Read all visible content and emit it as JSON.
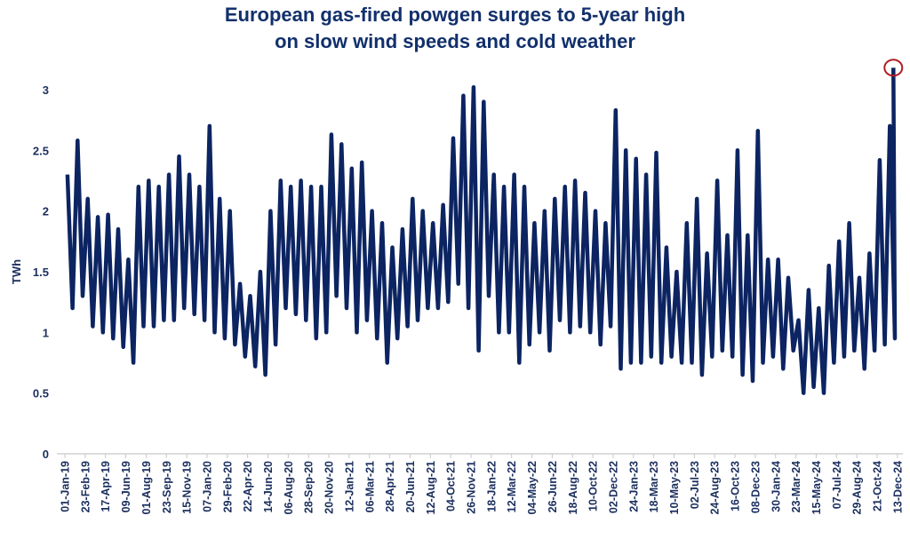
{
  "chart_data": {
    "type": "line",
    "title_lines": [
      "European gas-fired powgen surges to 5-year high",
      "on slow wind speeds and cold weather"
    ],
    "xlabel": "",
    "ylabel": "TWh",
    "ylim": [
      0,
      3.3
    ],
    "yticks": [
      "0",
      "0.5",
      "1",
      "1.5",
      "2",
      "2.5",
      "3"
    ],
    "grid": false,
    "legend": "none",
    "line_color": "#0c2461",
    "highlight_color": "#b01e23",
    "xticks": [
      "01-Jan-19",
      "23-Feb-19",
      "17-Apr-19",
      "09-Jun-19",
      "01-Aug-19",
      "23-Sep-19",
      "15-Nov-19",
      "07-Jan-20",
      "29-Feb-20",
      "22-Apr-20",
      "14-Jun-20",
      "06-Aug-20",
      "28-Sep-20",
      "20-Nov-20",
      "12-Jan-21",
      "06-Mar-21",
      "28-Apr-21",
      "20-Jun-21",
      "12-Aug-21",
      "04-Oct-21",
      "26-Nov-21",
      "18-Jan-22",
      "12-Mar-22",
      "04-May-22",
      "26-Jun-22",
      "18-Aug-22",
      "10-Oct-22",
      "02-Dec-22",
      "24-Jan-23",
      "18-Mar-23",
      "10-May-23",
      "02-Jul-23",
      "24-Aug-23",
      "16-Oct-23",
      "08-Dec-23",
      "30-Jan-24",
      "23-Mar-24",
      "15-May-24",
      "07-Jul-24",
      "29-Aug-24",
      "21-Oct-24",
      "13-Dec-24"
    ],
    "series_by_period": [
      {
        "period_start": "01-Jan-19",
        "values": [
          2.3,
          1.2,
          2.58,
          1.3
        ]
      },
      {
        "period_start": "23-Feb-19",
        "values": [
          2.1,
          1.05,
          1.95,
          1.0
        ]
      },
      {
        "period_start": "17-Apr-19",
        "values": [
          1.97,
          0.95,
          1.85,
          0.88
        ]
      },
      {
        "period_start": "09-Jun-19",
        "values": [
          1.6,
          0.75,
          2.2,
          1.05
        ]
      },
      {
        "period_start": "01-Aug-19",
        "values": [
          2.25,
          1.05,
          2.2,
          1.1
        ]
      },
      {
        "period_start": "23-Sep-19",
        "values": [
          2.3,
          1.1,
          2.45,
          1.2
        ]
      },
      {
        "period_start": "15-Nov-19",
        "values": [
          2.3,
          1.15,
          2.2,
          1.1
        ]
      },
      {
        "period_start": "07-Jan-20",
        "values": [
          2.7,
          1.0,
          2.1,
          0.95
        ]
      },
      {
        "period_start": "29-Feb-20",
        "values": [
          2.0,
          0.9,
          1.4,
          0.8
        ]
      },
      {
        "period_start": "22-Apr-20",
        "values": [
          1.3,
          0.72,
          1.5,
          0.65
        ]
      },
      {
        "period_start": "14-Jun-20",
        "values": [
          2.0,
          0.9,
          2.25,
          1.2
        ]
      },
      {
        "period_start": "06-Aug-20",
        "values": [
          2.2,
          1.15,
          2.25,
          1.1
        ]
      },
      {
        "period_start": "28-Sep-20",
        "values": [
          2.2,
          0.95,
          2.2,
          1.0
        ]
      },
      {
        "period_start": "20-Nov-20",
        "values": [
          2.63,
          1.3,
          2.55,
          1.2
        ]
      },
      {
        "period_start": "12-Jan-21",
        "values": [
          2.35,
          1.0,
          2.4,
          1.1
        ]
      },
      {
        "period_start": "06-Mar-21",
        "values": [
          2.0,
          0.95,
          1.9,
          0.75
        ]
      },
      {
        "period_start": "28-Apr-21",
        "values": [
          1.7,
          0.95,
          1.85,
          1.05
        ]
      },
      {
        "period_start": "20-Jun-21",
        "values": [
          2.1,
          1.1,
          2.0,
          1.2
        ]
      },
      {
        "period_start": "12-Aug-21",
        "values": [
          1.9,
          1.2,
          2.05,
          1.25
        ]
      },
      {
        "period_start": "04-Oct-21",
        "values": [
          2.6,
          1.4,
          2.95,
          1.2
        ]
      },
      {
        "period_start": "26-Nov-21",
        "values": [
          3.02,
          0.85,
          2.9,
          1.3
        ]
      },
      {
        "period_start": "18-Jan-22",
        "values": [
          2.3,
          1.0,
          2.2,
          1.0
        ]
      },
      {
        "period_start": "12-Mar-22",
        "values": [
          2.3,
          0.75,
          2.2,
          0.9
        ]
      },
      {
        "period_start": "04-May-22",
        "values": [
          1.9,
          1.0,
          2.0,
          0.85
        ]
      },
      {
        "period_start": "26-Jun-22",
        "values": [
          2.1,
          1.1,
          2.2,
          1.0
        ]
      },
      {
        "period_start": "18-Aug-22",
        "values": [
          2.25,
          1.05,
          2.15,
          1.0
        ]
      },
      {
        "period_start": "10-Oct-22",
        "values": [
          2.0,
          0.9,
          1.9,
          1.05
        ]
      },
      {
        "period_start": "02-Dec-22",
        "values": [
          2.83,
          0.7,
          2.5,
          0.75
        ]
      },
      {
        "period_start": "24-Jan-23",
        "values": [
          2.43,
          0.75,
          2.3,
          0.8
        ]
      },
      {
        "period_start": "18-Mar-23",
        "values": [
          2.48,
          0.75,
          1.7,
          0.8
        ]
      },
      {
        "period_start": "10-May-23",
        "values": [
          1.5,
          0.75,
          1.9,
          0.75
        ]
      },
      {
        "period_start": "02-Jul-23",
        "values": [
          2.1,
          0.65,
          1.65,
          0.8
        ]
      },
      {
        "period_start": "24-Aug-23",
        "values": [
          2.25,
          0.85,
          1.8,
          0.8
        ]
      },
      {
        "period_start": "16-Oct-23",
        "values": [
          2.5,
          0.65,
          1.8,
          0.6
        ]
      },
      {
        "period_start": "08-Dec-23",
        "values": [
          2.66,
          0.75,
          1.6,
          0.8
        ]
      },
      {
        "period_start": "30-Jan-24",
        "values": [
          1.6,
          0.7,
          1.45,
          0.85
        ]
      },
      {
        "period_start": "23-Mar-24",
        "values": [
          1.1,
          0.5,
          1.35,
          0.55
        ]
      },
      {
        "period_start": "15-May-24",
        "values": [
          1.2,
          0.5,
          1.55,
          0.75
        ]
      },
      {
        "period_start": "07-Jul-24",
        "values": [
          1.75,
          0.8,
          1.9,
          0.85
        ]
      },
      {
        "period_start": "29-Aug-24",
        "values": [
          1.45,
          0.7,
          1.65,
          0.85
        ]
      },
      {
        "period_start": "21-Oct-24",
        "values": [
          2.42,
          0.9,
          2.7,
          0.95
        ]
      }
    ],
    "highlight_point": {
      "value": 3.18,
      "note": "5-year high"
    }
  }
}
